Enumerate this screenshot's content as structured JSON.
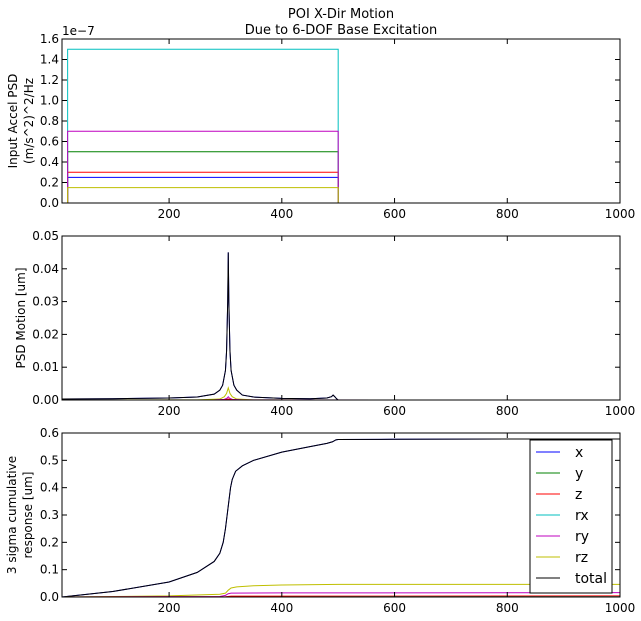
{
  "figure": {
    "title_line1": "POI X-Dir Motion",
    "title_line2": "Due to 6-DOF Base Excitation"
  },
  "colors": {
    "x": "#0000ff",
    "y": "#008000",
    "z": "#ff0000",
    "rx": "#00bfbf",
    "ry": "#bf00bf",
    "rz": "#bfbf00",
    "total": "#000000"
  },
  "chart_data": [
    {
      "type": "line",
      "id": "input-psd",
      "title": "POI X-Dir Motion\nDue to 6-DOF Base Excitation",
      "ylabel_line1": "Input Accel PSD",
      "ylabel_line2": "(m/s^2)^2/Hz",
      "offset_text": "1e−7",
      "xlim": [
        10,
        1000
      ],
      "ylim": [
        0,
        1.6
      ],
      "xticks": [
        200,
        400,
        600,
        800,
        1000
      ],
      "yticks": [
        0.0,
        0.2,
        0.4,
        0.6,
        0.8,
        1.0,
        1.2,
        1.4,
        1.6
      ],
      "ytick_labels": [
        "0.0",
        "0.2",
        "0.4",
        "0.6",
        "0.8",
        "1.0",
        "1.2",
        "1.4",
        "1.6"
      ],
      "series": [
        {
          "name": "x",
          "key": "x",
          "x": [
            10,
            20,
            20,
            500,
            500,
            1000
          ],
          "values": [
            0,
            0,
            0.25,
            0.25,
            0,
            0
          ]
        },
        {
          "name": "y",
          "key": "y",
          "x": [
            10,
            20,
            20,
            500,
            500,
            1000
          ],
          "values": [
            0,
            0,
            0.5,
            0.5,
            0,
            0
          ]
        },
        {
          "name": "z",
          "key": "z",
          "x": [
            10,
            20,
            20,
            500,
            500,
            1000
          ],
          "values": [
            0,
            0,
            0.3,
            0.3,
            0,
            0
          ]
        },
        {
          "name": "rx",
          "key": "rx",
          "x": [
            10,
            20,
            20,
            500,
            500,
            1000
          ],
          "values": [
            0,
            0,
            1.5,
            1.5,
            0,
            0
          ]
        },
        {
          "name": "ry",
          "key": "ry",
          "x": [
            10,
            20,
            20,
            500,
            500,
            1000
          ],
          "values": [
            0,
            0,
            0.7,
            0.7,
            0,
            0
          ]
        },
        {
          "name": "rz",
          "key": "rz",
          "x": [
            10,
            20,
            20,
            500,
            500,
            1000
          ],
          "values": [
            0,
            0,
            0.15,
            0.15,
            0,
            0
          ]
        }
      ]
    },
    {
      "type": "line",
      "id": "psd-motion",
      "ylabel": "PSD Motion [um]",
      "xlim": [
        10,
        1000
      ],
      "ylim": [
        0,
        0.05
      ],
      "xticks": [
        200,
        400,
        600,
        800,
        1000
      ],
      "yticks": [
        0.0,
        0.01,
        0.02,
        0.03,
        0.04,
        0.05
      ],
      "ytick_labels": [
        "0.00",
        "0.01",
        "0.02",
        "0.03",
        "0.04",
        "0.05"
      ],
      "series": [
        {
          "name": "x",
          "key": "x",
          "x": [
            10,
            100,
            200,
            250,
            280,
            290,
            295,
            300,
            302,
            304,
            305,
            306,
            308,
            310,
            315,
            320,
            330,
            350,
            400,
            450,
            480,
            488,
            491,
            494,
            497,
            500,
            600,
            800,
            1000
          ],
          "values": [
            0.0003,
            0.0004,
            0.0006,
            0.0009,
            0.0018,
            0.003,
            0.0045,
            0.009,
            0.015,
            0.03,
            0.045,
            0.03,
            0.015,
            0.009,
            0.0045,
            0.003,
            0.0015,
            0.0009,
            0.0005,
            0.0004,
            0.0006,
            0.001,
            0.0015,
            0.001,
            0.0004,
            0.0,
            0.0,
            0.0,
            0.0
          ]
        },
        {
          "name": "total",
          "key": "total",
          "x": [
            10,
            100,
            200,
            250,
            280,
            290,
            295,
            300,
            302,
            304,
            305,
            306,
            308,
            310,
            315,
            320,
            330,
            350,
            400,
            450,
            480,
            488,
            491,
            494,
            497,
            500,
            600,
            800,
            1000
          ],
          "values": [
            0.0003,
            0.0004,
            0.0006,
            0.0009,
            0.0018,
            0.003,
            0.0045,
            0.009,
            0.015,
            0.03,
            0.045,
            0.03,
            0.015,
            0.009,
            0.0045,
            0.003,
            0.0015,
            0.0009,
            0.0005,
            0.0004,
            0.0006,
            0.001,
            0.0015,
            0.001,
            0.0004,
            0.0,
            0.0,
            0.0,
            0.0
          ]
        },
        {
          "name": "rz",
          "key": "rz",
          "x": [
            10,
            250,
            290,
            298,
            302,
            305,
            308,
            312,
            320,
            350,
            500,
            1000
          ],
          "values": [
            0,
            5e-05,
            0.0003,
            0.001,
            0.002,
            0.0037,
            0.002,
            0.001,
            0.0003,
            5e-05,
            0,
            0
          ]
        },
        {
          "name": "ry",
          "key": "ry",
          "x": [
            10,
            280,
            298,
            303,
            305,
            307,
            312,
            330,
            1000
          ],
          "values": [
            0,
            2e-05,
            0.0002,
            0.0006,
            0.001,
            0.0006,
            0.0002,
            2e-05,
            0
          ]
        },
        {
          "name": "z",
          "key": "z",
          "x": [
            10,
            290,
            300,
            305,
            310,
            320,
            1000
          ],
          "values": [
            0,
            1e-05,
            0.0001,
            0.0003,
            0.0001,
            1e-05,
            0
          ]
        }
      ]
    },
    {
      "type": "line",
      "id": "cumulative",
      "ylabel_line1": "3 sigma cumulative",
      "ylabel_line2": "response [um]",
      "xlim": [
        10,
        1000
      ],
      "ylim": [
        0,
        0.6
      ],
      "xticks": [
        200,
        400,
        600,
        800,
        1000
      ],
      "yticks": [
        0.0,
        0.1,
        0.2,
        0.3,
        0.4,
        0.5,
        0.6
      ],
      "ytick_labels": [
        "0.0",
        "0.1",
        "0.2",
        "0.3",
        "0.4",
        "0.5",
        "0.6"
      ],
      "legend_location": "right",
      "legend": [
        "x",
        "y",
        "z",
        "rx",
        "ry",
        "rz",
        "total"
      ],
      "series": [
        {
          "name": "x",
          "key": "x",
          "x": [
            10,
            100,
            200,
            250,
            280,
            290,
            296,
            300,
            303,
            306,
            309,
            312,
            318,
            330,
            350,
            400,
            450,
            480,
            490,
            496,
            500,
            600,
            800,
            1000
          ],
          "values": [
            0,
            0.02,
            0.055,
            0.09,
            0.13,
            0.16,
            0.2,
            0.25,
            0.3,
            0.35,
            0.4,
            0.43,
            0.46,
            0.48,
            0.5,
            0.53,
            0.55,
            0.562,
            0.568,
            0.575,
            0.576,
            0.577,
            0.578,
            0.578
          ]
        },
        {
          "name": "total",
          "key": "total",
          "x": [
            10,
            100,
            200,
            250,
            280,
            290,
            296,
            300,
            303,
            306,
            309,
            312,
            318,
            330,
            350,
            400,
            450,
            480,
            490,
            496,
            500,
            600,
            800,
            1000
          ],
          "values": [
            0,
            0.02,
            0.055,
            0.09,
            0.13,
            0.16,
            0.2,
            0.25,
            0.3,
            0.35,
            0.4,
            0.43,
            0.46,
            0.48,
            0.5,
            0.53,
            0.55,
            0.562,
            0.568,
            0.575,
            0.576,
            0.577,
            0.578,
            0.578
          ]
        },
        {
          "name": "rz",
          "key": "rz",
          "x": [
            10,
            200,
            290,
            300,
            305,
            310,
            320,
            350,
            400,
            500,
            600,
            1000
          ],
          "values": [
            0,
            0.004,
            0.01,
            0.014,
            0.025,
            0.033,
            0.037,
            0.041,
            0.044,
            0.046,
            0.046,
            0.046
          ]
        },
        {
          "name": "ry",
          "key": "ry",
          "x": [
            10,
            290,
            300,
            305,
            310,
            400,
            1000
          ],
          "values": [
            0,
            0.002,
            0.006,
            0.012,
            0.014,
            0.015,
            0.016
          ]
        },
        {
          "name": "z",
          "key": "z",
          "x": [
            10,
            300,
            310,
            1000
          ],
          "values": [
            0,
            0.001,
            0.003,
            0.004
          ]
        },
        {
          "name": "y",
          "key": "y",
          "x": [
            10,
            1000
          ],
          "values": [
            0,
            0.0005
          ]
        },
        {
          "name": "rx",
          "key": "rx",
          "x": [
            10,
            1000
          ],
          "values": [
            0,
            0.0005
          ]
        }
      ]
    }
  ]
}
